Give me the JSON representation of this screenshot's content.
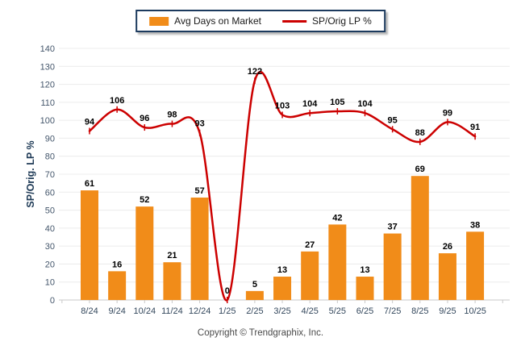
{
  "footer": {
    "text": "Copyright © Trendgraphix, Inc."
  },
  "colors": {
    "bar": "#F18C19",
    "line": "#CC0000",
    "grid": "#ECECEC",
    "axis_line": "#C9C9C9",
    "tick_label": "#44566B",
    "x_label": "#33475C",
    "value_label": "#000000",
    "axis_title": "#1E3A56",
    "legend_border": "#1C3A5E",
    "footer_text": "#4A4A4A"
  },
  "chart_data": {
    "type": "bar+line",
    "title": "",
    "categories": [
      "8/24",
      "9/24",
      "10/24",
      "11/24",
      "12/24",
      "1/25",
      "2/25",
      "3/25",
      "4/25",
      "5/25",
      "6/25",
      "7/25",
      "8/25",
      "9/25",
      "10/25"
    ],
    "series": [
      {
        "name": "Avg Days on Market",
        "type": "bar",
        "values": [
          61,
          16,
          52,
          21,
          57,
          0,
          5,
          13,
          27,
          42,
          13,
          37,
          69,
          26,
          38
        ]
      },
      {
        "name": "SP/Orig LP %",
        "type": "line",
        "values": [
          94,
          106,
          96,
          98,
          93,
          0,
          122,
          103,
          104,
          105,
          104,
          95,
          88,
          99,
          91
        ]
      }
    ],
    "xlabel": "",
    "ylabel": "SP/Orig. LP %",
    "ylim": [
      0,
      140
    ],
    "ytick_step": 10,
    "grid": true,
    "legend_position": "top-center"
  }
}
